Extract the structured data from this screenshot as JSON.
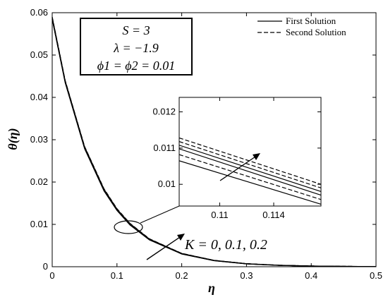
{
  "chart_data": [
    {
      "type": "line",
      "xlabel": "η",
      "ylabel": "θ(η)",
      "xlim": [
        0,
        0.5
      ],
      "ylim": [
        0,
        0.06
      ],
      "x_ticks": [
        "0",
        "0.1",
        "0.2",
        "0.3",
        "0.4",
        "0.5"
      ],
      "y_ticks": [
        "0",
        "0.01",
        "0.02",
        "0.03",
        "0.04",
        "0.05",
        "0.06"
      ],
      "grid": false,
      "legend_position": "top-right",
      "legend": [
        {
          "label": "First Solution",
          "style": "solid"
        },
        {
          "label": "Second Solution",
          "style": "dashed"
        }
      ],
      "param_box": {
        "line1": "S = 3",
        "line2": "λ = −1.9",
        "line3": "ϕ1 = ϕ2 = 0.01"
      },
      "annotation": "K = 0, 0.1, 0.2",
      "series": [
        {
          "style": "solid",
          "K": 0,
          "x": [
            0,
            0.02,
            0.05,
            0.08,
            0.1,
            0.12,
            0.15,
            0.2,
            0.25,
            0.3,
            0.35,
            0.4,
            0.45,
            0.5
          ],
          "y": [
            0.0585,
            0.0435,
            0.0279,
            0.0179,
            0.0133,
            0.00987,
            0.00634,
            0.00301,
            0.00143,
            0.00068,
            0.00032,
            0.00015,
            7e-05,
            3e-05
          ]
        },
        {
          "style": "solid",
          "K": 0.1,
          "x": [
            0,
            0.02,
            0.05,
            0.08,
            0.1,
            0.12,
            0.15,
            0.2,
            0.25,
            0.3,
            0.35,
            0.4,
            0.45,
            0.5
          ],
          "y": [
            0.0587,
            0.0437,
            0.0281,
            0.0181,
            0.0134,
            0.01003,
            0.00645,
            0.00307,
            0.00146,
            0.0007,
            0.00033,
            0.00016,
            7e-05,
            3e-05
          ]
        },
        {
          "style": "solid",
          "K": 0.2,
          "x": [
            0,
            0.02,
            0.05,
            0.08,
            0.1,
            0.12,
            0.15,
            0.2,
            0.25,
            0.3,
            0.35,
            0.4,
            0.45,
            0.5
          ],
          "y": [
            0.0589,
            0.0439,
            0.0283,
            0.0183,
            0.0136,
            0.01018,
            0.00655,
            0.00312,
            0.00149,
            0.00071,
            0.00034,
            0.00016,
            8e-05,
            4e-05
          ]
        },
        {
          "style": "dashed",
          "K": 0,
          "x": [
            0,
            0.02,
            0.05,
            0.08,
            0.1,
            0.12,
            0.15,
            0.2,
            0.25,
            0.3,
            0.35,
            0.4,
            0.45,
            0.5
          ],
          "y": [
            0.0585,
            0.0436,
            0.028,
            0.018,
            0.0134,
            0.00995,
            0.0064,
            0.00304,
            0.00145,
            0.00069,
            0.00033,
            0.00016,
            7e-05,
            3e-05
          ]
        },
        {
          "style": "dashed",
          "K": 0.1,
          "x": [
            0,
            0.02,
            0.05,
            0.08,
            0.1,
            0.12,
            0.15,
            0.2,
            0.25,
            0.3,
            0.35,
            0.4,
            0.45,
            0.5
          ],
          "y": [
            0.0588,
            0.0438,
            0.0282,
            0.0182,
            0.0135,
            0.0101,
            0.0065,
            0.0031,
            0.00147,
            0.0007,
            0.00034,
            0.00016,
            8e-05,
            4e-05
          ]
        },
        {
          "style": "dashed",
          "K": 0.2,
          "x": [
            0,
            0.02,
            0.05,
            0.08,
            0.1,
            0.12,
            0.15,
            0.2,
            0.25,
            0.3,
            0.35,
            0.4,
            0.45,
            0.5
          ],
          "y": [
            0.059,
            0.044,
            0.0284,
            0.0184,
            0.0137,
            0.01025,
            0.0066,
            0.00315,
            0.0015,
            0.00072,
            0.00034,
            0.00016,
            8e-05,
            4e-05
          ]
        }
      ]
    },
    {
      "type": "line",
      "role": "inset",
      "xlim": [
        0.107,
        0.1175
      ],
      "ylim": [
        0.0094,
        0.0124
      ],
      "x_ticks": [
        "0.11",
        "0.114"
      ],
      "y_ticks": [
        "0.01",
        "0.011",
        "0.012"
      ],
      "series": [
        {
          "style": "solid",
          "K": 0,
          "x": [
            0.107,
            0.1175
          ],
          "y": [
            0.01065,
            0.00945
          ]
        },
        {
          "style": "dashed",
          "K": 0,
          "x": [
            0.107,
            0.1175
          ],
          "y": [
            0.01082,
            0.00958
          ]
        },
        {
          "style": "solid",
          "K": 0.1,
          "x": [
            0.107,
            0.1175
          ],
          "y": [
            0.01098,
            0.0097
          ]
        },
        {
          "style": "solid",
          "K": 0.2,
          "x": [
            0.107,
            0.1175
          ],
          "y": [
            0.01108,
            0.0098
          ]
        },
        {
          "style": "dashed",
          "K": 0.1,
          "x": [
            0.107,
            0.1175
          ],
          "y": [
            0.01118,
            0.0099
          ]
        },
        {
          "style": "dashed",
          "K": 0.2,
          "x": [
            0.107,
            0.1175
          ],
          "y": [
            0.01128,
            0.01
          ]
        }
      ]
    }
  ]
}
